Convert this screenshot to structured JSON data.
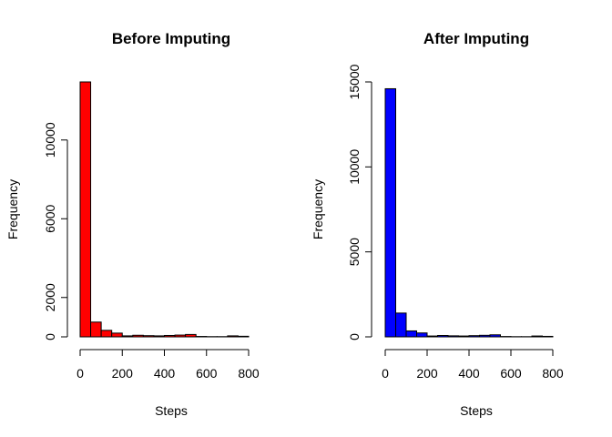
{
  "chart_data": [
    {
      "type": "bar",
      "title": "Before Imputing",
      "xlabel": "Steps",
      "ylabel": "Frequency",
      "color": "#ff0000",
      "bin_width": 50,
      "bin_starts": [
        0,
        50,
        100,
        150,
        200,
        250,
        300,
        350,
        400,
        450,
        500,
        550,
        600,
        650,
        700,
        750,
        800
      ],
      "values": [
        12950,
        750,
        330,
        190,
        50,
        80,
        60,
        50,
        70,
        90,
        120,
        20,
        10,
        10,
        50,
        30,
        0
      ],
      "xlim": [
        0,
        850
      ],
      "ylim": [
        0,
        12950
      ],
      "x_ticks": [
        0,
        200,
        400,
        600,
        800
      ],
      "y_ticks": [
        0,
        2000,
        6000,
        10000
      ],
      "x_tick_labels": [
        "0",
        "200",
        "400",
        "600",
        "800"
      ],
      "y_tick_labels": [
        "0",
        "2000",
        "6000",
        "10000"
      ],
      "grid": false
    },
    {
      "type": "bar",
      "title": "After Imputing",
      "xlabel": "Steps",
      "ylabel": "Frequency",
      "color": "#0000ff",
      "bin_width": 50,
      "bin_starts": [
        0,
        50,
        100,
        150,
        200,
        250,
        300,
        350,
        400,
        450,
        500,
        550,
        600,
        650,
        700,
        750,
        800
      ],
      "values": [
        14600,
        1400,
        350,
        230,
        50,
        80,
        60,
        50,
        70,
        90,
        120,
        20,
        10,
        10,
        50,
        30,
        0
      ],
      "xlim": [
        0,
        850
      ],
      "ylim": [
        0,
        15000
      ],
      "x_ticks": [
        0,
        200,
        400,
        600,
        800
      ],
      "y_ticks": [
        0,
        5000,
        10000,
        15000
      ],
      "x_tick_labels": [
        "0",
        "200",
        "400",
        "600",
        "800"
      ],
      "y_tick_labels": [
        "0",
        "5000",
        "10000",
        "15000"
      ],
      "grid": false
    }
  ]
}
